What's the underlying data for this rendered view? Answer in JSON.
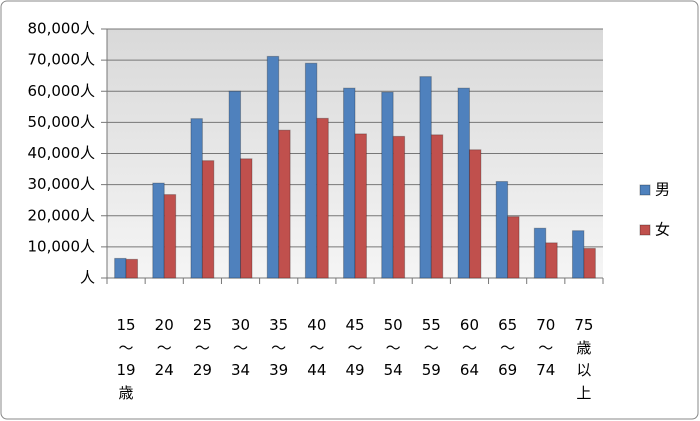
{
  "chart_data": {
    "type": "bar",
    "categories": [
      "15\n〜\n19\n歳",
      "20\n〜\n24",
      "25\n〜\n29",
      "30\n〜\n34",
      "35\n〜\n39",
      "40\n〜\n44",
      "45\n〜\n49",
      "50\n〜\n54",
      "55\n〜\n59",
      "60\n〜\n64",
      "65\n〜\n69",
      "70\n〜\n74",
      "75\n歳\n以\n上"
    ],
    "series": [
      {
        "name": "男",
        "color": "#4f81bd",
        "values": [
          6300,
          30500,
          51200,
          60000,
          71200,
          69000,
          61000,
          59700,
          64700,
          61000,
          31000,
          16000,
          15200
        ]
      },
      {
        "name": "女",
        "color": "#c0504d",
        "values": [
          6000,
          26800,
          37700,
          38300,
          47500,
          51300,
          46300,
          45500,
          46000,
          41200,
          19700,
          11300,
          9500
        ]
      }
    ],
    "ylim": [
      0,
      80000
    ],
    "yticks": [
      {
        "value": 0,
        "label": "人"
      },
      {
        "value": 10000,
        "label": "10,000人"
      },
      {
        "value": 20000,
        "label": "20,000人"
      },
      {
        "value": 30000,
        "label": "30,000人"
      },
      {
        "value": 40000,
        "label": "40,000人"
      },
      {
        "value": 50000,
        "label": "50,000人"
      },
      {
        "value": 60000,
        "label": "60,000人"
      },
      {
        "value": 70000,
        "label": "70,000人"
      },
      {
        "value": 80000,
        "label": "80,000人"
      }
    ],
    "grid": true
  }
}
